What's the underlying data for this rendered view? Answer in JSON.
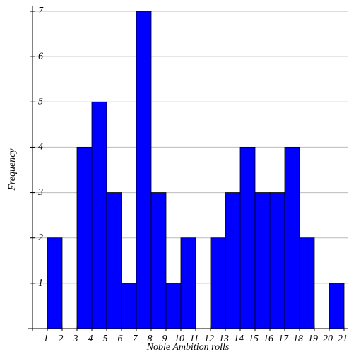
{
  "chart_data": {
    "type": "histogram",
    "x_label": "Noble Ambition rolls",
    "y_label": "Frequency",
    "bins": [
      1,
      2,
      3,
      4,
      5,
      6,
      7,
      8,
      9,
      10,
      11,
      12,
      13,
      14,
      15,
      16,
      17,
      18,
      19,
      20,
      21
    ],
    "values": [
      2,
      0,
      4,
      5,
      3,
      1,
      7,
      3,
      1,
      2,
      0,
      2,
      3,
      4,
      3,
      3,
      4,
      2,
      0,
      1
    ],
    "color": "#0000ff",
    "xlim": [
      0,
      21
    ],
    "ylim": [
      0,
      7
    ],
    "xticks": [
      1,
      2,
      3,
      4,
      5,
      6,
      7,
      8,
      9,
      10,
      11,
      12,
      13,
      14,
      15,
      16,
      17,
      18,
      19,
      20,
      21
    ],
    "yticks": [
      1,
      2,
      3,
      4,
      5,
      6,
      7
    ],
    "grid": true
  }
}
